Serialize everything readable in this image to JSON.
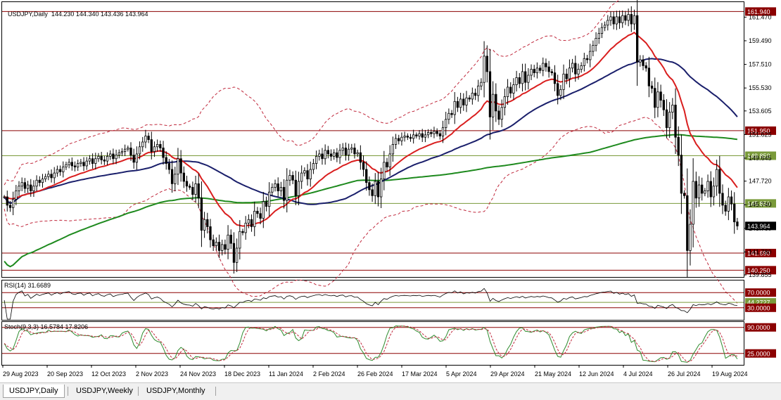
{
  "header": {
    "symbol_label": "USDJPY,Daily",
    "ohlc": "144.230 144.340 143.436 143.964"
  },
  "tabs": [
    {
      "label": "USDJPY,Daily",
      "active": true
    },
    {
      "label": "USDJPY,Weekly",
      "active": false
    },
    {
      "label": "USDJPY,Monthly",
      "active": false
    }
  ],
  "indicators": {
    "rsi_label": "RSI(14) 31.6689",
    "stoch_label": "Stoch(9,3,3) 16.5784 17.8206"
  },
  "colors": {
    "candle": "#000000",
    "ma_fast": "#d91e1e",
    "ma_mid": "#1a1f6b",
    "ma_slow": "#1e8a1e",
    "bands": "#c0283c",
    "level_red": "#8b0000",
    "level_green": "#7a9a3a",
    "rsi_line": "#000000",
    "stoch_main": "#2e8b2e",
    "stoch_signal": "#c0283c"
  },
  "chart_data": {
    "type": "candlestick",
    "symbol": "USDJPY",
    "timeframe": "Daily",
    "x_tick_labels": [
      "29 Aug 2023",
      "20 Sep 2023",
      "12 Oct 2023",
      "2 Nov 2023",
      "24 Nov 2023",
      "18 Dec 2023",
      "11 Jan 2024",
      "2 Feb 2024",
      "26 Feb 2024",
      "17 Mar 2024",
      "5 Apr 2024",
      "29 Apr 2024",
      "21 May 2024",
      "12 Jun 2024",
      "4 Jul 2024",
      "26 Jul 2024",
      "19 Aug 2024"
    ],
    "y_tick_labels": [
      "161.470",
      "159.490",
      "157.510",
      "155.530",
      "153.605",
      "151.625",
      "149.645",
      "147.720",
      "145.740",
      "143.760",
      "141.780",
      "139.855"
    ],
    "y_range": [
      139.8,
      162.2
    ],
    "horizontal_levels": [
      {
        "value": 161.94,
        "label": "161.940",
        "color": "level_red"
      },
      {
        "value": 151.95,
        "label": "151.950",
        "color": "level_red"
      },
      {
        "value": 149.85,
        "label": "149.850",
        "color": "level_green"
      },
      {
        "value": 145.85,
        "label": "145.850",
        "color": "level_green"
      },
      {
        "value": 141.69,
        "label": "141.690",
        "color": "level_red"
      },
      {
        "value": 140.25,
        "label": "140.250",
        "color": "level_red"
      }
    ],
    "last_price": {
      "value": 143.964,
      "label": "143.964"
    },
    "closes": [
      146.4,
      145.7,
      145.5,
      146.2,
      146.9,
      147.3,
      147.6,
      147.1,
      147.4,
      146.9,
      147.3,
      147.8,
      147.6,
      147.9,
      148.1,
      148.3,
      148.0,
      148.4,
      148.7,
      148.5,
      148.9,
      149.1,
      149.3,
      149.0,
      148.9,
      149.2,
      149.3,
      149.0,
      149.4,
      149.6,
      149.2,
      149.6,
      149.8,
      149.5,
      149.4,
      149.8,
      150.0,
      149.6,
      149.9,
      150.1,
      150.2,
      150.4,
      150.5,
      149.9,
      149.3,
      150.0,
      150.6,
      151.0,
      151.5,
      151.2,
      150.2,
      150.6,
      150.8,
      150.5,
      149.7,
      149.2,
      148.7,
      147.5,
      148.3,
      149.6,
      148.4,
      147.7,
      147.3,
      147.2,
      146.6,
      147.5,
      146.3,
      143.6,
      144.5,
      143.9,
      142.8,
      142.3,
      142.6,
      141.9,
      142.4,
      142.0,
      143.2,
      142.5,
      140.9,
      142.1,
      143.5,
      143.4,
      144.2,
      144.5,
      143.9,
      145.2,
      145.0,
      144.6,
      146.0,
      145.6,
      146.8,
      147.2,
      147.5,
      146.9,
      147.2,
      146.1,
      147.8,
      148.2,
      147.8,
      146.5,
      147.7,
      148.4,
      148.6,
      147.9,
      148.7,
      149.2,
      149.8,
      150.0,
      149.6,
      150.3,
      150.0,
      149.8,
      150.1,
      149.7,
      150.3,
      150.5,
      149.9,
      150.4,
      150.5,
      150.0,
      150.1,
      149.3,
      148.7,
      147.6,
      147.0,
      146.5,
      147.7,
      146.4,
      147.9,
      149.3,
      148.9,
      150.0,
      150.8,
      151.3,
      151.1,
      151.4,
      151.5,
      151.4,
      151.3,
      151.6,
      151.5,
      151.7,
      151.4,
      151.6,
      151.8,
      151.7,
      151.9,
      151.7,
      151.5,
      152.2,
      152.9,
      153.4,
      153.3,
      154.4,
      153.9,
      154.6,
      154.1,
      154.7,
      154.6,
      155.1,
      154.9,
      155.7,
      156.0,
      158.2,
      156.9,
      153.1,
      155.0,
      153.6,
      152.9,
      153.9,
      154.8,
      155.6,
      155.1,
      155.8,
      156.4,
      155.9,
      156.9,
      156.0,
      156.6,
      157.1,
      156.8,
      157.2,
      157.0,
      157.6,
      157.3,
      156.9,
      156.8,
      155.9,
      154.9,
      155.4,
      156.7,
      156.3,
      157.2,
      157.6,
      156.7,
      157.1,
      157.4,
      158.0,
      157.9,
      158.6,
      159.1,
      159.7,
      160.1,
      160.6,
      160.8,
      161.2,
      161.5,
      160.9,
      161.5,
      161.0,
      161.6,
      161.2,
      161.7,
      160.9,
      161.6,
      157.7,
      157.9,
      157.4,
      157.2,
      155.7,
      155.5,
      153.9,
      155.2,
      154.5,
      153.7,
      152.2,
      153.5,
      154.1,
      151.4,
      149.9,
      146.7,
      146.5,
      141.9,
      144.1,
      147.7,
      146.3,
      147.4,
      146.7,
      146.9,
      147.7,
      146.4,
      147.3,
      148.7,
      146.7,
      145.7,
      145.2,
      146.4,
      145.8,
      144.3,
      143.96
    ]
  }
}
